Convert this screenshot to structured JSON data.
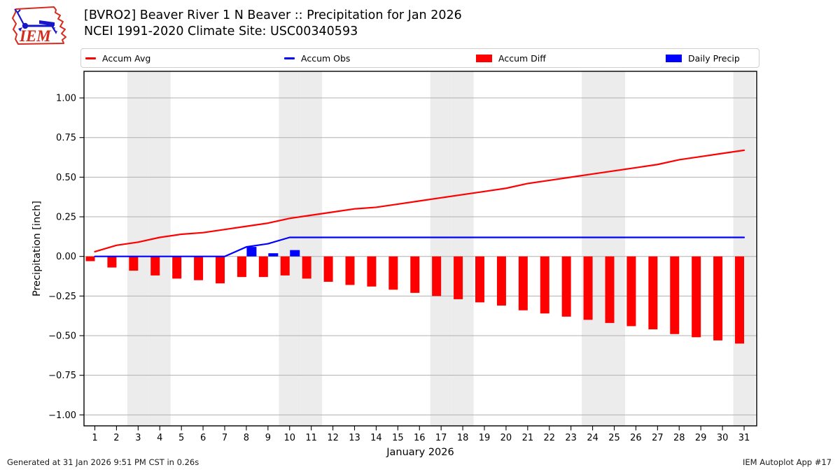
{
  "header": {
    "title": "[BVRO2] Beaver River 1 N Beaver :: Precipitation for Jan 2026",
    "subtitle": "NCEI 1991-2020 Climate Site: USC00340593",
    "logo_text": "IEM"
  },
  "legend": {
    "items": [
      {
        "label": "Accum Avg",
        "type": "line",
        "color": "#ff0000"
      },
      {
        "label": "Accum Obs",
        "type": "line",
        "color": "#0000ff"
      },
      {
        "label": "Accum Diff",
        "type": "patch",
        "color": "#ff0000"
      },
      {
        "label": "Daily Precip",
        "type": "patch",
        "color": "#0000ff"
      }
    ]
  },
  "chart_data": {
    "type": "line+bar",
    "xlabel": "January 2026",
    "ylabel": "Precipitation [inch]",
    "x_days": [
      1,
      2,
      3,
      4,
      5,
      6,
      7,
      8,
      9,
      10,
      11,
      12,
      13,
      14,
      15,
      16,
      17,
      18,
      19,
      20,
      21,
      22,
      23,
      24,
      25,
      26,
      27,
      28,
      29,
      30,
      31
    ],
    "ylim": [
      -1.07,
      1.17
    ],
    "ytick_values": [
      1.0,
      0.75,
      0.5,
      0.25,
      0.0,
      -0.25,
      -0.5,
      -0.75,
      -1.0
    ],
    "ytick_labels": [
      "1.00",
      "0.75",
      "0.50",
      "0.25",
      "0.00",
      "−0.25",
      "−0.50",
      "−0.75",
      "−1.00"
    ],
    "weekend_shading_days": [
      3,
      4,
      10,
      11,
      17,
      18,
      24,
      25,
      31
    ],
    "grid": true,
    "legend_position": "top",
    "series": [
      {
        "name": "Accum Avg",
        "type": "line",
        "color": "#ff0000",
        "values": [
          0.03,
          0.07,
          0.09,
          0.12,
          0.14,
          0.15,
          0.17,
          0.19,
          0.21,
          0.24,
          0.26,
          0.28,
          0.3,
          0.31,
          0.33,
          0.35,
          0.37,
          0.39,
          0.41,
          0.43,
          0.46,
          0.48,
          0.5,
          0.52,
          0.54,
          0.56,
          0.58,
          0.61,
          0.63,
          0.65,
          0.67
        ]
      },
      {
        "name": "Accum Obs",
        "type": "line",
        "color": "#0000ff",
        "values": [
          0,
          0,
          0,
          0,
          0,
          0,
          0,
          0.06,
          0.08,
          0.12,
          0.12,
          0.12,
          0.12,
          0.12,
          0.12,
          0.12,
          0.12,
          0.12,
          0.12,
          0.12,
          0.12,
          0.12,
          0.12,
          0.12,
          0.12,
          0.12,
          0.12,
          0.12,
          0.12,
          0.12,
          0.12
        ]
      },
      {
        "name": "Accum Diff",
        "type": "bar",
        "color": "#ff0000",
        "values": [
          -0.03,
          -0.07,
          -0.09,
          -0.12,
          -0.14,
          -0.15,
          -0.17,
          -0.13,
          -0.13,
          -0.12,
          -0.14,
          -0.16,
          -0.18,
          -0.19,
          -0.21,
          -0.23,
          -0.25,
          -0.27,
          -0.29,
          -0.31,
          -0.34,
          -0.36,
          -0.38,
          -0.4,
          -0.42,
          -0.44,
          -0.46,
          -0.49,
          -0.51,
          -0.53,
          -0.55
        ]
      },
      {
        "name": "Daily Precip",
        "type": "bar",
        "color": "#0000ff",
        "values": [
          0,
          0,
          0,
          0,
          0,
          0,
          0,
          0.06,
          0.02,
          0.04,
          0,
          0,
          0,
          0,
          0,
          0,
          0,
          0,
          0,
          0,
          0,
          0,
          0,
          0,
          0,
          0,
          0,
          0,
          0,
          0,
          0
        ]
      }
    ]
  },
  "footer": {
    "generated": "Generated at 31 Jan 2026 9:51 PM CST in 0.26s",
    "credit": "IEM Autoplot App #17"
  },
  "colors": {
    "accum_avg": "#ff0000",
    "accum_obs": "#0000ff",
    "grid": "#b0b0b0",
    "weekend_band": "#ececec",
    "spine": "#000000",
    "logo_red": "#d52b1e",
    "logo_blue": "#1717c9"
  }
}
